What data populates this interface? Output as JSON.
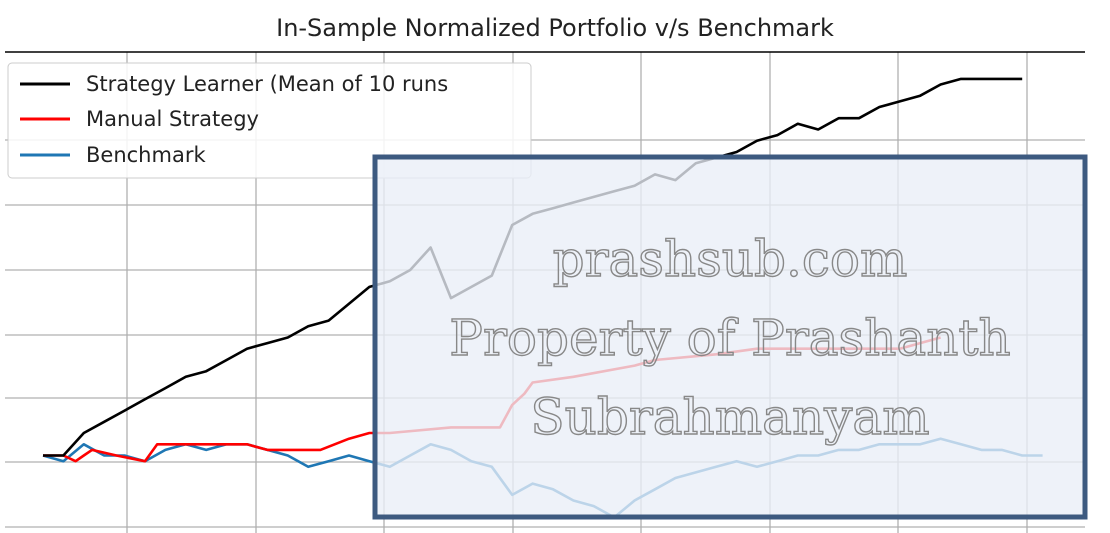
{
  "chart_data": {
    "type": "line",
    "title": "In-Sample Normalized Portfolio v/s Benchmark",
    "xlabel": "",
    "ylabel": "",
    "xlim": [
      0,
      250
    ],
    "ylim": [
      0.88,
      1.7
    ],
    "grid": true,
    "legend_position": "top-left",
    "series": [
      {
        "name": "Strategy Learner (Mean of 10 runs",
        "color": "#000000",
        "x": [
          0,
          5,
          10,
          15,
          20,
          25,
          30,
          35,
          40,
          45,
          50,
          55,
          60,
          65,
          70,
          75,
          80,
          85,
          90,
          95,
          100,
          105,
          110,
          115,
          120,
          125,
          130,
          135,
          140,
          145,
          150,
          155,
          160,
          165,
          170,
          175,
          180,
          185,
          190,
          195,
          200,
          205,
          210,
          215,
          220,
          225,
          230,
          235,
          240
        ],
        "values": [
          1.0,
          1.0,
          1.04,
          1.06,
          1.08,
          1.1,
          1.12,
          1.14,
          1.15,
          1.17,
          1.19,
          1.2,
          1.21,
          1.23,
          1.24,
          1.27,
          1.3,
          1.31,
          1.33,
          1.37,
          1.28,
          1.3,
          1.32,
          1.41,
          1.43,
          1.44,
          1.45,
          1.46,
          1.47,
          1.48,
          1.5,
          1.49,
          1.52,
          1.53,
          1.54,
          1.56,
          1.57,
          1.59,
          1.58,
          1.6,
          1.6,
          1.62,
          1.63,
          1.64,
          1.66,
          1.67,
          1.67,
          1.67,
          1.67
        ]
      },
      {
        "name": "Manual Strategy",
        "color": "#ff0000",
        "x": [
          0,
          5,
          8,
          10,
          12,
          18,
          25,
          28,
          35,
          50,
          55,
          62,
          68,
          75,
          80,
          85,
          100,
          112,
          115,
          118,
          120,
          130,
          145,
          150,
          165,
          175,
          195,
          210,
          220
        ],
        "values": [
          1.0,
          1.0,
          0.99,
          1.0,
          1.01,
          1.0,
          0.99,
          1.02,
          1.02,
          1.02,
          1.01,
          1.01,
          1.01,
          1.03,
          1.04,
          1.04,
          1.05,
          1.05,
          1.09,
          1.11,
          1.13,
          1.14,
          1.16,
          1.17,
          1.18,
          1.19,
          1.19,
          1.19,
          1.21
        ]
      },
      {
        "name": "Benchmark",
        "color": "#1f77b4",
        "x": [
          0,
          5,
          10,
          15,
          20,
          25,
          30,
          35,
          40,
          45,
          50,
          55,
          60,
          65,
          70,
          75,
          80,
          85,
          90,
          95,
          100,
          105,
          110,
          115,
          120,
          125,
          130,
          135,
          140,
          145,
          150,
          155,
          160,
          165,
          170,
          175,
          180,
          185,
          190,
          195,
          200,
          205,
          210,
          215,
          220,
          225,
          230,
          235,
          240,
          245
        ],
        "values": [
          1.0,
          0.99,
          1.02,
          1.0,
          1.0,
          0.99,
          1.01,
          1.02,
          1.01,
          1.02,
          1.02,
          1.01,
          1.0,
          0.98,
          0.99,
          1.0,
          0.99,
          0.98,
          1.0,
          1.02,
          1.01,
          0.99,
          0.98,
          0.93,
          0.95,
          0.94,
          0.92,
          0.91,
          0.89,
          0.92,
          0.94,
          0.96,
          0.97,
          0.98,
          0.99,
          0.98,
          0.99,
          1.0,
          1.0,
          1.01,
          1.01,
          1.02,
          1.02,
          1.02,
          1.03,
          1.02,
          1.01,
          1.01,
          1.0,
          1.0
        ]
      }
    ]
  },
  "watermark": {
    "lines": [
      "prashsub.com",
      "Property of Prashanth",
      "Subrahmanyam"
    ],
    "box_fill": "#e9eef7",
    "box_stroke": "#3d5a80"
  }
}
